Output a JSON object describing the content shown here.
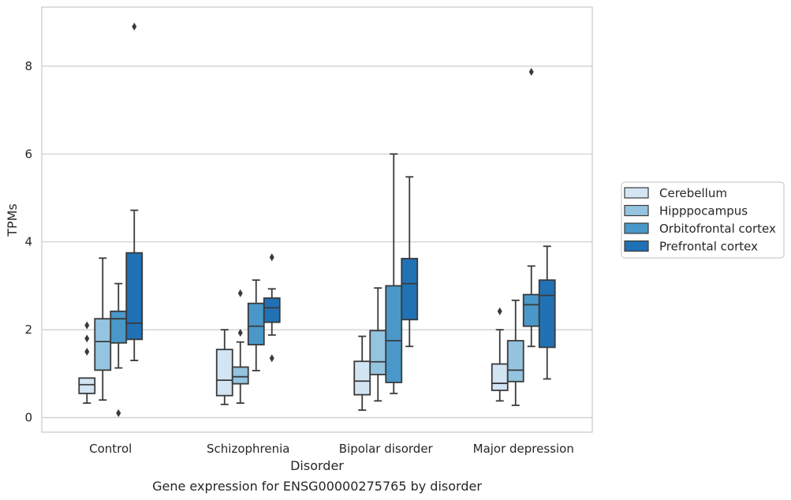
{
  "chart_data": {
    "type": "boxplot",
    "xlabel": "Disorder",
    "ylabel": "TPMs",
    "caption": "Gene expression for ENSG00000275765 by disorder",
    "ylim": [
      -0.3,
      9.3
    ],
    "yticks": [
      0,
      2,
      4,
      6,
      8
    ],
    "grid": "horizontal",
    "legend_position": "right",
    "categories": [
      "Control",
      "Schizophrenia",
      "Bipolar disorder",
      "Major depression"
    ],
    "series": [
      {
        "name": "Cerebellum",
        "color": "#d3e4f3",
        "boxes": [
          {
            "whisker_low": 0.33,
            "q1": 0.55,
            "median": 0.75,
            "q3": 0.9,
            "whisker_high": 0.9,
            "outliers": [
              1.5,
              1.8,
              2.1
            ]
          },
          {
            "whisker_low": 0.3,
            "q1": 0.5,
            "median": 0.85,
            "q3": 1.55,
            "whisker_high": 2.0,
            "outliers": []
          },
          {
            "whisker_low": 0.17,
            "q1": 0.52,
            "median": 0.83,
            "q3": 1.28,
            "whisker_high": 1.85,
            "outliers": []
          },
          {
            "whisker_low": 0.38,
            "q1": 0.62,
            "median": 0.78,
            "q3": 1.22,
            "whisker_high": 2.0,
            "outliers": [
              2.42
            ]
          }
        ]
      },
      {
        "name": "Hipppocampus",
        "color": "#94c4df",
        "boxes": [
          {
            "whisker_low": 0.4,
            "q1": 1.08,
            "median": 1.73,
            "q3": 2.25,
            "whisker_high": 3.63,
            "outliers": []
          },
          {
            "whisker_low": 0.33,
            "q1": 0.77,
            "median": 0.93,
            "q3": 1.15,
            "whisker_high": 1.72,
            "outliers": [
              1.93,
              2.83
            ]
          },
          {
            "whisker_low": 0.38,
            "q1": 0.98,
            "median": 1.27,
            "q3": 1.98,
            "whisker_high": 2.95,
            "outliers": []
          },
          {
            "whisker_low": 0.28,
            "q1": 0.82,
            "median": 1.08,
            "q3": 1.75,
            "whisker_high": 2.67,
            "outliers": []
          }
        ]
      },
      {
        "name": "Orbitofrontal cortex",
        "color": "#4a98c9",
        "boxes": [
          {
            "whisker_low": 1.13,
            "q1": 1.7,
            "median": 2.25,
            "q3": 2.42,
            "whisker_high": 3.05,
            "outliers": [
              0.1
            ]
          },
          {
            "whisker_low": 1.07,
            "q1": 1.66,
            "median": 2.08,
            "q3": 2.6,
            "whisker_high": 3.13,
            "outliers": []
          },
          {
            "whisker_low": 0.55,
            "q1": 0.8,
            "median": 1.75,
            "q3": 3.0,
            "whisker_high": 6.0,
            "outliers": []
          },
          {
            "whisker_low": 1.62,
            "q1": 2.08,
            "median": 2.57,
            "q3": 2.8,
            "whisker_high": 3.45,
            "outliers": [
              7.87
            ]
          }
        ]
      },
      {
        "name": "Prefrontal cortex",
        "color": "#2171b5",
        "boxes": [
          {
            "whisker_low": 1.3,
            "q1": 1.78,
            "median": 2.15,
            "q3": 3.75,
            "whisker_high": 4.72,
            "outliers": [
              8.9
            ]
          },
          {
            "whisker_low": 1.88,
            "q1": 2.17,
            "median": 2.5,
            "q3": 2.72,
            "whisker_high": 2.93,
            "outliers": [
              1.35,
              3.65
            ]
          },
          {
            "whisker_low": 1.62,
            "q1": 2.23,
            "median": 3.05,
            "q3": 3.62,
            "whisker_high": 5.48,
            "outliers": []
          },
          {
            "whisker_low": 0.88,
            "q1": 1.6,
            "median": 2.78,
            "q3": 3.13,
            "whisker_high": 3.9,
            "outliers": []
          }
        ]
      }
    ]
  }
}
